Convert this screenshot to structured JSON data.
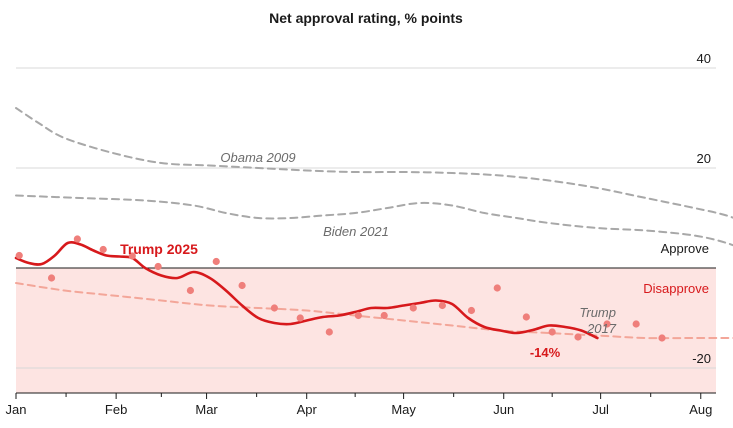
{
  "chart_data": {
    "type": "line",
    "title": "Net approval rating, % points",
    "ylim": [
      -25,
      42
    ],
    "y_ticks": [
      40,
      20,
      -20
    ],
    "grid": true,
    "x_months": [
      "Jan",
      "Feb",
      "Mar",
      "Apr",
      "May",
      "Jun",
      "Jul",
      "Aug"
    ],
    "zones": {
      "approve": "Approve",
      "disapprove": "Disapprove"
    },
    "colors": {
      "trump2025": "#d7191c",
      "trump2025_points": "#ef7f7b",
      "trump2017": "#f3a699",
      "reference": "#a8a8a8",
      "disapprove_fill": "#fde4e2",
      "disapprove_text": "#d7191c"
    },
    "series": [
      {
        "name": "Obama 2009",
        "style": "dashed",
        "points": [
          [
            0,
            32
          ],
          [
            7,
            29
          ],
          [
            15,
            26
          ],
          [
            30,
            23
          ],
          [
            45,
            21
          ],
          [
            60,
            20.5
          ],
          [
            75,
            20
          ],
          [
            90,
            19.5
          ],
          [
            105,
            19.2
          ],
          [
            120,
            19.2
          ],
          [
            135,
            19
          ],
          [
            150,
            18.5
          ],
          [
            165,
            17.5
          ],
          [
            180,
            16
          ],
          [
            195,
            14
          ],
          [
            210,
            12
          ],
          [
            220,
            10.5
          ],
          [
            228,
            8.5
          ]
        ]
      },
      {
        "name": "Biden 2021",
        "style": "dashed",
        "points": [
          [
            0,
            14.5
          ],
          [
            20,
            14
          ],
          [
            40,
            13.5
          ],
          [
            55,
            12.5
          ],
          [
            65,
            11
          ],
          [
            75,
            10
          ],
          [
            85,
            10
          ],
          [
            95,
            10.5
          ],
          [
            105,
            11
          ],
          [
            115,
            12
          ],
          [
            125,
            13
          ],
          [
            135,
            12.5
          ],
          [
            145,
            11
          ],
          [
            155,
            10
          ],
          [
            165,
            9
          ],
          [
            180,
            8
          ],
          [
            195,
            7.5
          ],
          [
            210,
            6.5
          ],
          [
            220,
            5
          ],
          [
            228,
            3
          ]
        ]
      },
      {
        "name": "Trump\n2017",
        "style": "dashed",
        "points": [
          [
            0,
            -3
          ],
          [
            15,
            -4.5
          ],
          [
            30,
            -5.5
          ],
          [
            45,
            -6.5
          ],
          [
            60,
            -7.5
          ],
          [
            75,
            -8
          ],
          [
            90,
            -8.5
          ],
          [
            105,
            -9.5
          ],
          [
            120,
            -10.5
          ],
          [
            135,
            -11.5
          ],
          [
            150,
            -12.5
          ],
          [
            165,
            -13
          ],
          [
            180,
            -13.5
          ],
          [
            195,
            -14
          ],
          [
            210,
            -14
          ],
          [
            228,
            -14
          ]
        ]
      },
      {
        "name": "Trump 2025",
        "style": "solid",
        "end_label": "-14%",
        "points": [
          [
            0,
            2
          ],
          [
            4,
            1
          ],
          [
            8,
            0.8
          ],
          [
            12,
            2.5
          ],
          [
            16,
            5
          ],
          [
            20,
            4.7
          ],
          [
            24,
            3.5
          ],
          [
            28,
            2.5
          ],
          [
            32,
            2.3
          ],
          [
            36,
            2
          ],
          [
            40,
            0
          ],
          [
            45,
            -1.5
          ],
          [
            50,
            -2
          ],
          [
            55,
            -0.8
          ],
          [
            60,
            -2
          ],
          [
            65,
            -4.5
          ],
          [
            70,
            -7.5
          ],
          [
            75,
            -10
          ],
          [
            80,
            -11
          ],
          [
            85,
            -11.2
          ],
          [
            90,
            -10.5
          ],
          [
            95,
            -9.8
          ],
          [
            100,
            -9.5
          ],
          [
            105,
            -8.8
          ],
          [
            110,
            -8
          ],
          [
            115,
            -8
          ],
          [
            120,
            -7.5
          ],
          [
            125,
            -7
          ],
          [
            130,
            -6.5
          ],
          [
            135,
            -7.2
          ],
          [
            140,
            -10
          ],
          [
            145,
            -11.8
          ],
          [
            150,
            -12.5
          ],
          [
            155,
            -13
          ],
          [
            160,
            -12.4
          ],
          [
            165,
            -11.5
          ],
          [
            170,
            -11.8
          ],
          [
            175,
            -12.5
          ],
          [
            180,
            -14
          ]
        ]
      }
    ],
    "scatter_points": [
      [
        1,
        2.5
      ],
      [
        11,
        -2
      ],
      [
        19,
        5.8
      ],
      [
        27,
        3.7
      ],
      [
        36,
        2.4
      ],
      [
        44,
        0.3
      ],
      [
        54,
        -4.5
      ],
      [
        62,
        1.3
      ],
      [
        70,
        -3.5
      ],
      [
        80,
        -8
      ],
      [
        88,
        -10
      ],
      [
        97,
        -12.8
      ],
      [
        106,
        -9.5
      ],
      [
        114,
        -9.5
      ],
      [
        123,
        -8
      ],
      [
        132,
        -7.5
      ],
      [
        141,
        -8.5
      ],
      [
        149,
        -4
      ],
      [
        158,
        -9.8
      ],
      [
        166,
        -12.8
      ],
      [
        174,
        -13.8
      ],
      [
        183,
        -11.2
      ],
      [
        192,
        -11.2
      ],
      [
        200,
        -14
      ]
    ]
  }
}
